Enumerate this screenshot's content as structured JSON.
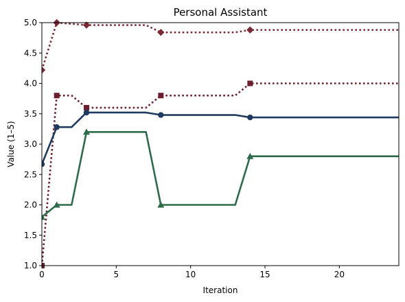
{
  "chart_data": {
    "type": "line",
    "title": "Personal Assistant",
    "xlabel": "Iteration",
    "ylabel": "Value (1–5)",
    "xlim": [
      0,
      24
    ],
    "ylim": [
      1.0,
      5.0
    ],
    "xticks": [
      0,
      5,
      10,
      15,
      20
    ],
    "xtick_labels": [
      "0",
      "5",
      "10",
      "15",
      "20"
    ],
    "yticks": [
      1.0,
      1.5,
      2.0,
      2.5,
      3.0,
      3.5,
      4.0,
      4.5,
      5.0
    ],
    "ytick_labels": [
      "1.0",
      "1.5",
      "2.0",
      "2.5",
      "3.0",
      "3.5",
      "4.0",
      "4.5",
      "5.0"
    ],
    "grid": false,
    "legend": "none",
    "series": [
      {
        "color": "#7b2a35",
        "linestyle": "dotted",
        "marker": "diamond",
        "x": [
          0,
          1,
          3,
          7,
          8,
          13,
          14,
          24
        ],
        "y": [
          4.22,
          5.0,
          4.96,
          4.96,
          4.84,
          4.84,
          4.88,
          4.88
        ],
        "marker_x": [
          0,
          1,
          3,
          8,
          14
        ]
      },
      {
        "color": "#6b1f2e",
        "linestyle": "dotted",
        "marker": "square",
        "x": [
          0,
          1,
          2,
          3,
          7,
          8,
          13,
          14,
          24
        ],
        "y": [
          1.0,
          3.8,
          3.8,
          3.6,
          3.6,
          3.8,
          3.8,
          4.0,
          4.0
        ],
        "marker_x": [
          0,
          1,
          3,
          8,
          14
        ]
      },
      {
        "color": "#1f3a5f",
        "linestyle": "solid",
        "marker": "circle",
        "x": [
          0,
          1,
          2,
          3,
          7,
          8,
          13,
          14,
          24
        ],
        "y": [
          2.67,
          3.28,
          3.28,
          3.52,
          3.52,
          3.48,
          3.48,
          3.44,
          3.44
        ],
        "marker_x": [
          0,
          1,
          3,
          8,
          14
        ]
      },
      {
        "color": "#2e6b4a",
        "linestyle": "solid",
        "marker": "triangle",
        "x": [
          0,
          1,
          2,
          3,
          7,
          8,
          13,
          14,
          24
        ],
        "y": [
          1.8,
          2.0,
          2.0,
          3.2,
          3.2,
          2.0,
          2.0,
          2.8,
          2.8
        ],
        "marker_x": [
          0,
          1,
          3,
          8,
          14
        ]
      }
    ]
  }
}
